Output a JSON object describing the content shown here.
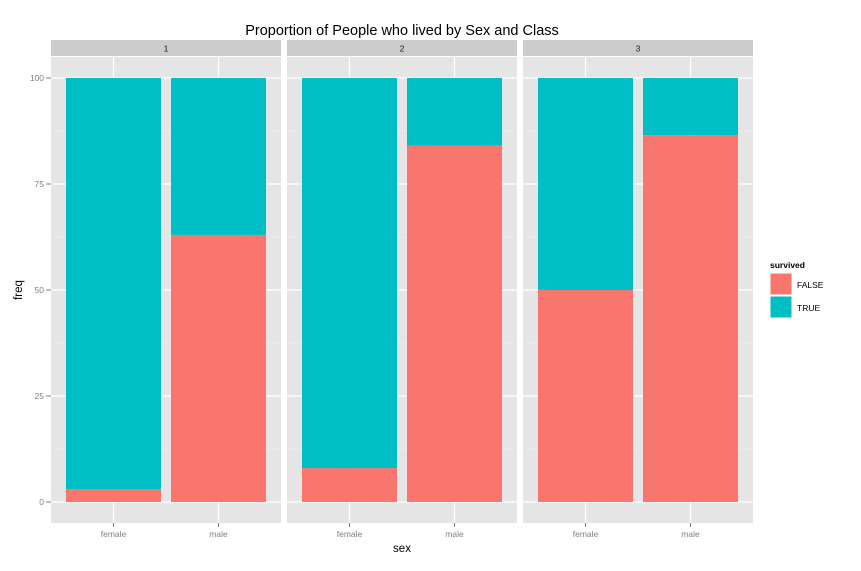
{
  "chart_data": {
    "type": "bar",
    "stacked": true,
    "title": "Proportion of People who lived by Sex and Class",
    "xlabel": "sex",
    "ylabel": "freq",
    "ylim": [
      0,
      100
    ],
    "y_ticks": [
      0,
      25,
      50,
      75,
      100
    ],
    "grid": true,
    "legend": {
      "title": "survived",
      "placement": "right",
      "entries": [
        {
          "label": "FALSE",
          "color": "#F8766D"
        },
        {
          "label": "TRUE",
          "color": "#00BFC4"
        }
      ]
    },
    "facets": [
      {
        "label": "1",
        "categories": [
          "female",
          "male"
        ],
        "series": [
          {
            "name": "FALSE",
            "values": [
              3,
              63
            ]
          },
          {
            "name": "TRUE",
            "values": [
              97,
              37
            ]
          }
        ]
      },
      {
        "label": "2",
        "categories": [
          "female",
          "male"
        ],
        "series": [
          {
            "name": "FALSE",
            "values": [
              8,
              84
            ]
          },
          {
            "name": "TRUE",
            "values": [
              92,
              16
            ]
          }
        ]
      },
      {
        "label": "3",
        "categories": [
          "female",
          "male"
        ],
        "series": [
          {
            "name": "FALSE",
            "values": [
              50,
              86.5
            ]
          },
          {
            "name": "TRUE",
            "values": [
              50,
              13.5
            ]
          }
        ]
      }
    ]
  }
}
